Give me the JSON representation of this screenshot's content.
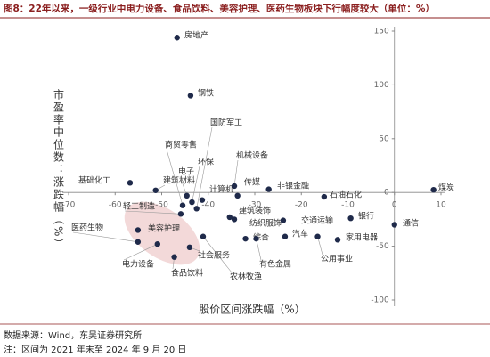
{
  "chart_data": {
    "type": "scatter",
    "title": "图8：22年以来，一级行业中电力设备、食品饮料、美容护理、医药生物板块下行幅度较大（单位：%）",
    "xlabel": "股价区间涨跌幅（%）",
    "ylabel": "市盈率中位数：涨跌幅（%）",
    "source": "数据来源：Wind，东吴证券研究所",
    "note": "注：区间为 2021 年末至 2024 年 9 月 20 日",
    "color": "#1f2a4a",
    "categories": [
      "房地产",
      "钢铁",
      "基础化工",
      "建筑材料",
      "商贸零售",
      "电子",
      "环保",
      "国防军工",
      "计算机",
      "轻工制造",
      "美容护理",
      "医药生物",
      "电力设备",
      "食品饮料",
      "社会服务",
      "农林牧渔",
      "机械设备",
      "传媒",
      "建筑装饰",
      "纺织服饰",
      "非银金融",
      "石油石化",
      "煤炭",
      "交通运输",
      "汽车",
      "综合",
      "有色金属",
      "银行",
      "家用电器",
      "公用事业",
      "通信"
    ],
    "x": [
      -46.7,
      -43.8,
      -56.8,
      -51.3,
      -45.5,
      -44.6,
      -43.5,
      -42.5,
      -41.3,
      -45.9,
      -55.1,
      -55.1,
      -50.9,
      -47.3,
      -44,
      -41.1,
      -34.4,
      -33.7,
      -35.4,
      -34.4,
      -27,
      -15.1,
      8.4,
      -23.9,
      -23.5,
      -32,
      -29.7,
      -9.4,
      -12.2,
      -16.5,
      0
    ],
    "values": [
      144,
      90,
      9,
      2,
      -12,
      -3,
      -9,
      -15,
      -7,
      -20,
      -35,
      -46,
      -48,
      -60,
      -51,
      -41,
      6,
      -3,
      -23,
      -25,
      3,
      -4,
      2.5,
      -26,
      -41,
      -43,
      -43,
      -24,
      -44,
      -41,
      -30
    ],
    "xlim": [
      -70,
      10
    ],
    "ylim": [
      -100,
      150
    ],
    "xticks": [
      -70,
      -60,
      -50,
      -40,
      -30,
      -20,
      -10,
      0,
      10
    ],
    "yticks": [
      150,
      100,
      50,
      0,
      -50,
      -100
    ]
  }
}
